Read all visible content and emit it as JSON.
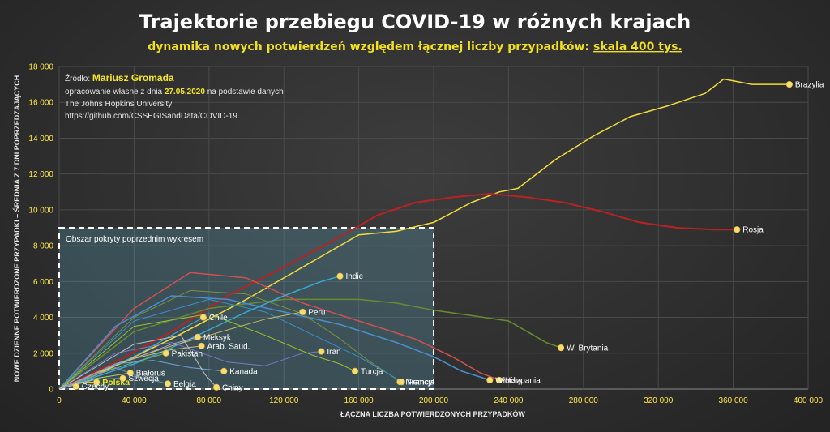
{
  "chart_data": {
    "type": "line",
    "title": "Trajektorie przebiegu COVID-19 w różnych krajach",
    "subtitle_main": "dynamika nowych potwierdzeń względem łącznej liczby przypadków: ",
    "subtitle_link": "skala 400 tys.",
    "xlabel": "ŁĄCZNA LICZBA POTWIERDZONYCH PRZYPADKÓW",
    "ylabel": "NOWE DZIENNE POTWIERDZONE PRZYPADKI – ŚREDNIA Z 7 DNI POPRZEDZAJĄCYCH",
    "xlim": [
      0,
      400000
    ],
    "ylim": [
      0,
      18000
    ],
    "x_ticks": [
      0,
      40000,
      80000,
      120000,
      160000,
      200000,
      240000,
      280000,
      320000,
      360000,
      400000
    ],
    "x_tick_labels": [
      "0",
      "40 000",
      "80 000",
      "120 000",
      "160 000",
      "200 000",
      "240 000",
      "280 000",
      "320 000",
      "360 000",
      "400 000"
    ],
    "y_ticks": [
      0,
      2000,
      4000,
      6000,
      8000,
      10000,
      12000,
      14000,
      16000,
      18000
    ],
    "y_tick_labels": [
      "0",
      "2 000",
      "4 000",
      "6 000",
      "8 000",
      "10 000",
      "12 000",
      "14 000",
      "16 000",
      "18 000"
    ],
    "grid": true,
    "source": {
      "prefix": "Źródło: ",
      "author": "Mariusz Gromada",
      "line2_a": "opracowanie własne z dnia ",
      "line2_date": "27.05.2020",
      "line2_b": " na podstawie danych",
      "line3": "The Johns Hopkins University",
      "line4": "https://github.com/CSSEGISandData/COVID-19"
    },
    "box": {
      "label": "Obszar pokryty poprzednim wykresem",
      "x": [
        0,
        200000
      ],
      "y": [
        0,
        9000
      ]
    },
    "series": [
      {
        "name": "Brazylia",
        "color": "#f0dc3c",
        "width": 1.5,
        "points": [
          [
            0,
            0
          ],
          [
            20000,
            800
          ],
          [
            40000,
            1800
          ],
          [
            60000,
            2800
          ],
          [
            80000,
            3900
          ],
          [
            100000,
            5000
          ],
          [
            120000,
            6200
          ],
          [
            140000,
            7400
          ],
          [
            160000,
            8600
          ],
          [
            180000,
            8800
          ],
          [
            200000,
            9300
          ],
          [
            220000,
            10400
          ],
          [
            235000,
            11000
          ],
          [
            245000,
            11200
          ],
          [
            265000,
            12800
          ],
          [
            285000,
            14100
          ],
          [
            305000,
            15200
          ],
          [
            325000,
            15800
          ],
          [
            345000,
            16500
          ],
          [
            355000,
            17300
          ],
          [
            370000,
            17000
          ],
          [
            390000,
            17000
          ]
        ]
      },
      {
        "name": "Rosja",
        "color": "#b82222",
        "width": 2,
        "points": [
          [
            0,
            0
          ],
          [
            30000,
            1500
          ],
          [
            60000,
            3200
          ],
          [
            90000,
            5200
          ],
          [
            120000,
            6800
          ],
          [
            150000,
            8500
          ],
          [
            170000,
            9700
          ],
          [
            190000,
            10400
          ],
          [
            210000,
            10700
          ],
          [
            230000,
            10900
          ],
          [
            250000,
            10700
          ],
          [
            270000,
            10400
          ],
          [
            290000,
            9900
          ],
          [
            310000,
            9300
          ],
          [
            330000,
            9000
          ],
          [
            350000,
            8900
          ],
          [
            362000,
            8900
          ]
        ]
      },
      {
        "name": "W. Brytania",
        "color": "#6a8a30",
        "width": 1.5,
        "points": [
          [
            0,
            0
          ],
          [
            40000,
            3200
          ],
          [
            80000,
            4500
          ],
          [
            120000,
            5000
          ],
          [
            160000,
            5000
          ],
          [
            180000,
            4800
          ],
          [
            200000,
            4400
          ],
          [
            220000,
            4100
          ],
          [
            240000,
            3800
          ],
          [
            250000,
            3200
          ],
          [
            260000,
            2600
          ],
          [
            268000,
            2300
          ]
        ]
      },
      {
        "name": "Hiszpania",
        "color": "#d05050",
        "width": 1.5,
        "points": [
          [
            0,
            0
          ],
          [
            40000,
            4500
          ],
          [
            70000,
            6500
          ],
          [
            100000,
            6200
          ],
          [
            130000,
            4800
          ],
          [
            160000,
            3800
          ],
          [
            190000,
            2800
          ],
          [
            210000,
            1800
          ],
          [
            225000,
            900
          ],
          [
            235000,
            500
          ]
        ]
      },
      {
        "name": "Włochy",
        "color": "#4a8ed0",
        "width": 1.5,
        "points": [
          [
            0,
            0
          ],
          [
            30000,
            3500
          ],
          [
            60000,
            5200
          ],
          [
            90000,
            5000
          ],
          [
            120000,
            4300
          ],
          [
            150000,
            3600
          ],
          [
            180000,
            2600
          ],
          [
            200000,
            1800
          ],
          [
            215000,
            1000
          ],
          [
            230000,
            500
          ]
        ]
      },
      {
        "name": "Niemcy",
        "color": "#7a9040",
        "width": 1,
        "points": [
          [
            0,
            0
          ],
          [
            40000,
            4000
          ],
          [
            70000,
            5500
          ],
          [
            100000,
            5300
          ],
          [
            130000,
            4200
          ],
          [
            150000,
            2800
          ],
          [
            165000,
            1600
          ],
          [
            178000,
            700
          ],
          [
            182000,
            400
          ]
        ]
      },
      {
        "name": "Francja",
        "color": "#3a8ec8",
        "width": 1,
        "points": [
          [
            0,
            0
          ],
          [
            40000,
            3800
          ],
          [
            80000,
            5000
          ],
          [
            110000,
            4300
          ],
          [
            140000,
            2800
          ],
          [
            160000,
            1800
          ],
          [
            175000,
            900
          ],
          [
            183000,
            400
          ]
        ]
      },
      {
        "name": "Indie",
        "color": "#38a8d0",
        "width": 1.5,
        "points": [
          [
            0,
            0
          ],
          [
            20000,
            700
          ],
          [
            40000,
            1400
          ],
          [
            60000,
            2300
          ],
          [
            80000,
            3300
          ],
          [
            100000,
            4300
          ],
          [
            120000,
            5200
          ],
          [
            140000,
            6000
          ],
          [
            150000,
            6300
          ]
        ]
      },
      {
        "name": "Peru",
        "color": "#c8b860",
        "width": 1,
        "points": [
          [
            0,
            0
          ],
          [
            30000,
            1400
          ],
          [
            60000,
            2400
          ],
          [
            90000,
            3300
          ],
          [
            110000,
            3900
          ],
          [
            130000,
            4300
          ]
        ]
      },
      {
        "name": "Iran",
        "color": "#7878c8",
        "width": 1,
        "points": [
          [
            0,
            0
          ],
          [
            30000,
            2000
          ],
          [
            60000,
            2600
          ],
          [
            90000,
            1500
          ],
          [
            110000,
            1300
          ],
          [
            130000,
            2000
          ],
          [
            140000,
            2100
          ]
        ]
      },
      {
        "name": "Turcja",
        "color": "#9ac030",
        "width": 1,
        "points": [
          [
            0,
            0
          ],
          [
            40000,
            3500
          ],
          [
            80000,
            4200
          ],
          [
            110000,
            3000
          ],
          [
            135000,
            1900
          ],
          [
            150000,
            1400
          ],
          [
            158000,
            1000
          ]
        ]
      },
      {
        "name": "Chile",
        "color": "#50b0e0",
        "width": 1,
        "points": [
          [
            0,
            0
          ],
          [
            20000,
            900
          ],
          [
            40000,
            1800
          ],
          [
            60000,
            3000
          ],
          [
            77000,
            4000
          ]
        ]
      },
      {
        "name": "Meksyk",
        "color": "#c0a0d0",
        "width": 1,
        "points": [
          [
            0,
            0
          ],
          [
            20000,
            900
          ],
          [
            40000,
            1700
          ],
          [
            60000,
            2500
          ],
          [
            74000,
            2900
          ]
        ]
      },
      {
        "name": "Arab. Saud.",
        "color": "#d0c070",
        "width": 1,
        "points": [
          [
            0,
            0
          ],
          [
            20000,
            900
          ],
          [
            40000,
            1700
          ],
          [
            60000,
            2200
          ],
          [
            76000,
            2400
          ]
        ]
      },
      {
        "name": "Pakistan",
        "color": "#70c070",
        "width": 1,
        "points": [
          [
            0,
            0
          ],
          [
            20000,
            800
          ],
          [
            40000,
            1500
          ],
          [
            57000,
            2000
          ]
        ]
      },
      {
        "name": "Kanada",
        "color": "#70a0d8",
        "width": 1,
        "points": [
          [
            0,
            0
          ],
          [
            30000,
            1400
          ],
          [
            50000,
            1600
          ],
          [
            70000,
            1200
          ],
          [
            88000,
            1000
          ]
        ]
      },
      {
        "name": "Białoruś",
        "color": "#c0d070",
        "width": 1,
        "points": [
          [
            0,
            0
          ],
          [
            20000,
            600
          ],
          [
            38000,
            900
          ]
        ]
      },
      {
        "name": "Polska",
        "color": "#ffd000",
        "width": 1.5,
        "points": [
          [
            0,
            0
          ],
          [
            10000,
            350
          ],
          [
            20000,
            380
          ]
        ]
      },
      {
        "name": "Szwecja",
        "color": "#80b0e0",
        "width": 1,
        "points": [
          [
            0,
            0
          ],
          [
            20000,
            550
          ],
          [
            34000,
            600
          ]
        ]
      },
      {
        "name": "Czechy",
        "color": "#a0c0a0",
        "width": 1,
        "points": [
          [
            0,
            0
          ],
          [
            6000,
            250
          ],
          [
            9000,
            150
          ]
        ]
      },
      {
        "name": "Belgia",
        "color": "#8090c0",
        "width": 1,
        "points": [
          [
            0,
            0
          ],
          [
            30000,
            1200
          ],
          [
            45000,
            600
          ],
          [
            58000,
            300
          ]
        ]
      },
      {
        "name": "Chiny",
        "color": "#c0c0c0",
        "width": 1,
        "points": [
          [
            0,
            0
          ],
          [
            40000,
            2500
          ],
          [
            65000,
            3000
          ],
          [
            78000,
            800
          ],
          [
            84000,
            100
          ]
        ]
      }
    ]
  }
}
